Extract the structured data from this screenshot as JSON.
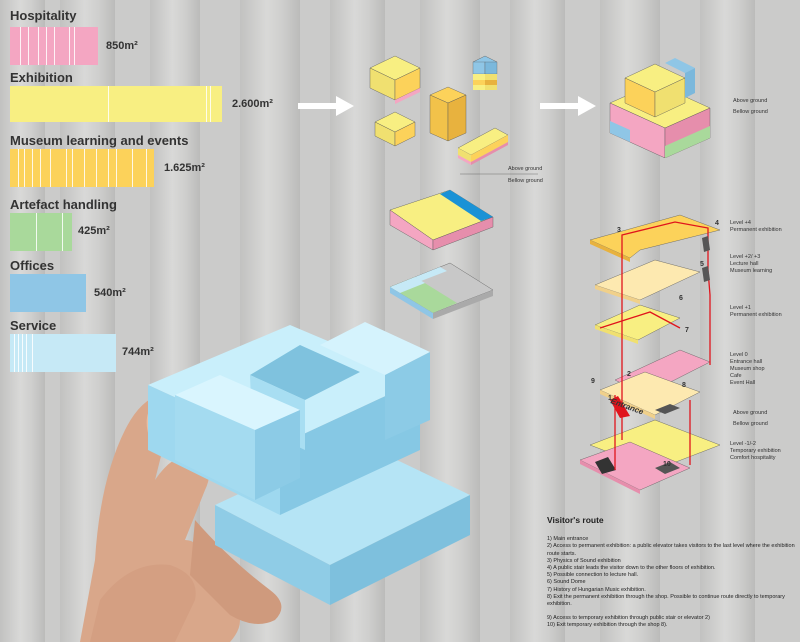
{
  "programs": [
    {
      "name": "Hospitality",
      "area": "850m²",
      "color": "#f4a6c2"
    },
    {
      "name": "Exhibition",
      "area": "2.600m²",
      "color": "#f8ef82"
    },
    {
      "name": "Museum learning and events",
      "area": "1.625m²",
      "color": "#fcd25a"
    },
    {
      "name": "Artefact handling",
      "area": "425m²",
      "color": "#a9d99b"
    },
    {
      "name": "Offices",
      "area": "540m²",
      "color": "#8fc6e6"
    },
    {
      "name": "Service",
      "area": "744m²",
      "color": "#c6e9f6"
    }
  ],
  "diagram_labels": {
    "above_ground_1": "Above ground",
    "below_ground_1": "Bellow ground",
    "above_ground_2": "Above ground",
    "below_ground_2": "Bellow ground",
    "above_ground_3": "Above ground",
    "below_ground_3": "Bellow ground",
    "entrance": "Entrance"
  },
  "levels": [
    {
      "title": "Level +4",
      "desc": [
        "Permanent exhibition"
      ]
    },
    {
      "title": "Level +2/ +3",
      "desc": [
        "Lecture hall",
        "Museum learning"
      ]
    },
    {
      "title": "Level +1",
      "desc": [
        "Permanent exhibition"
      ]
    },
    {
      "title": "Level 0",
      "desc": [
        "Entrance hall",
        "Museum shop",
        "Cafe",
        "Event Hall"
      ]
    },
    {
      "title": "Level -1/-2",
      "desc": [
        "Temporary exhibition",
        "Comfort hospitality"
      ]
    }
  ],
  "markers": [
    "1",
    "2",
    "3",
    "4",
    "5",
    "6",
    "7",
    "8",
    "9",
    "10"
  ],
  "visitors_route": {
    "title": "Visitor's route",
    "items": [
      "1) Main entrance",
      "2) Access to permanent exhibition: a public elevator takes visitors to the last level where the exhibition route starts.",
      "3) Physics of Sound exhibition",
      "4) A public stair leads the visitor down to the other floors of exhibition.",
      "5) Possible connection to lecture hall.",
      "6) Sound Dome",
      "7) History of Hungarian Music exhibition.",
      "8) Exit the permanent exhibition through the shop. Possible to continue route directly to temporary exhibition."
    ],
    "items2": [
      "9) Access to temporary exhibition through public stair or elevator 2)",
      "10) Exit temporary exhibition through the shop 8)."
    ]
  },
  "colors": {
    "route_red": "#e0141c",
    "model_blue": "#9fd7ee",
    "text": "#333333"
  }
}
